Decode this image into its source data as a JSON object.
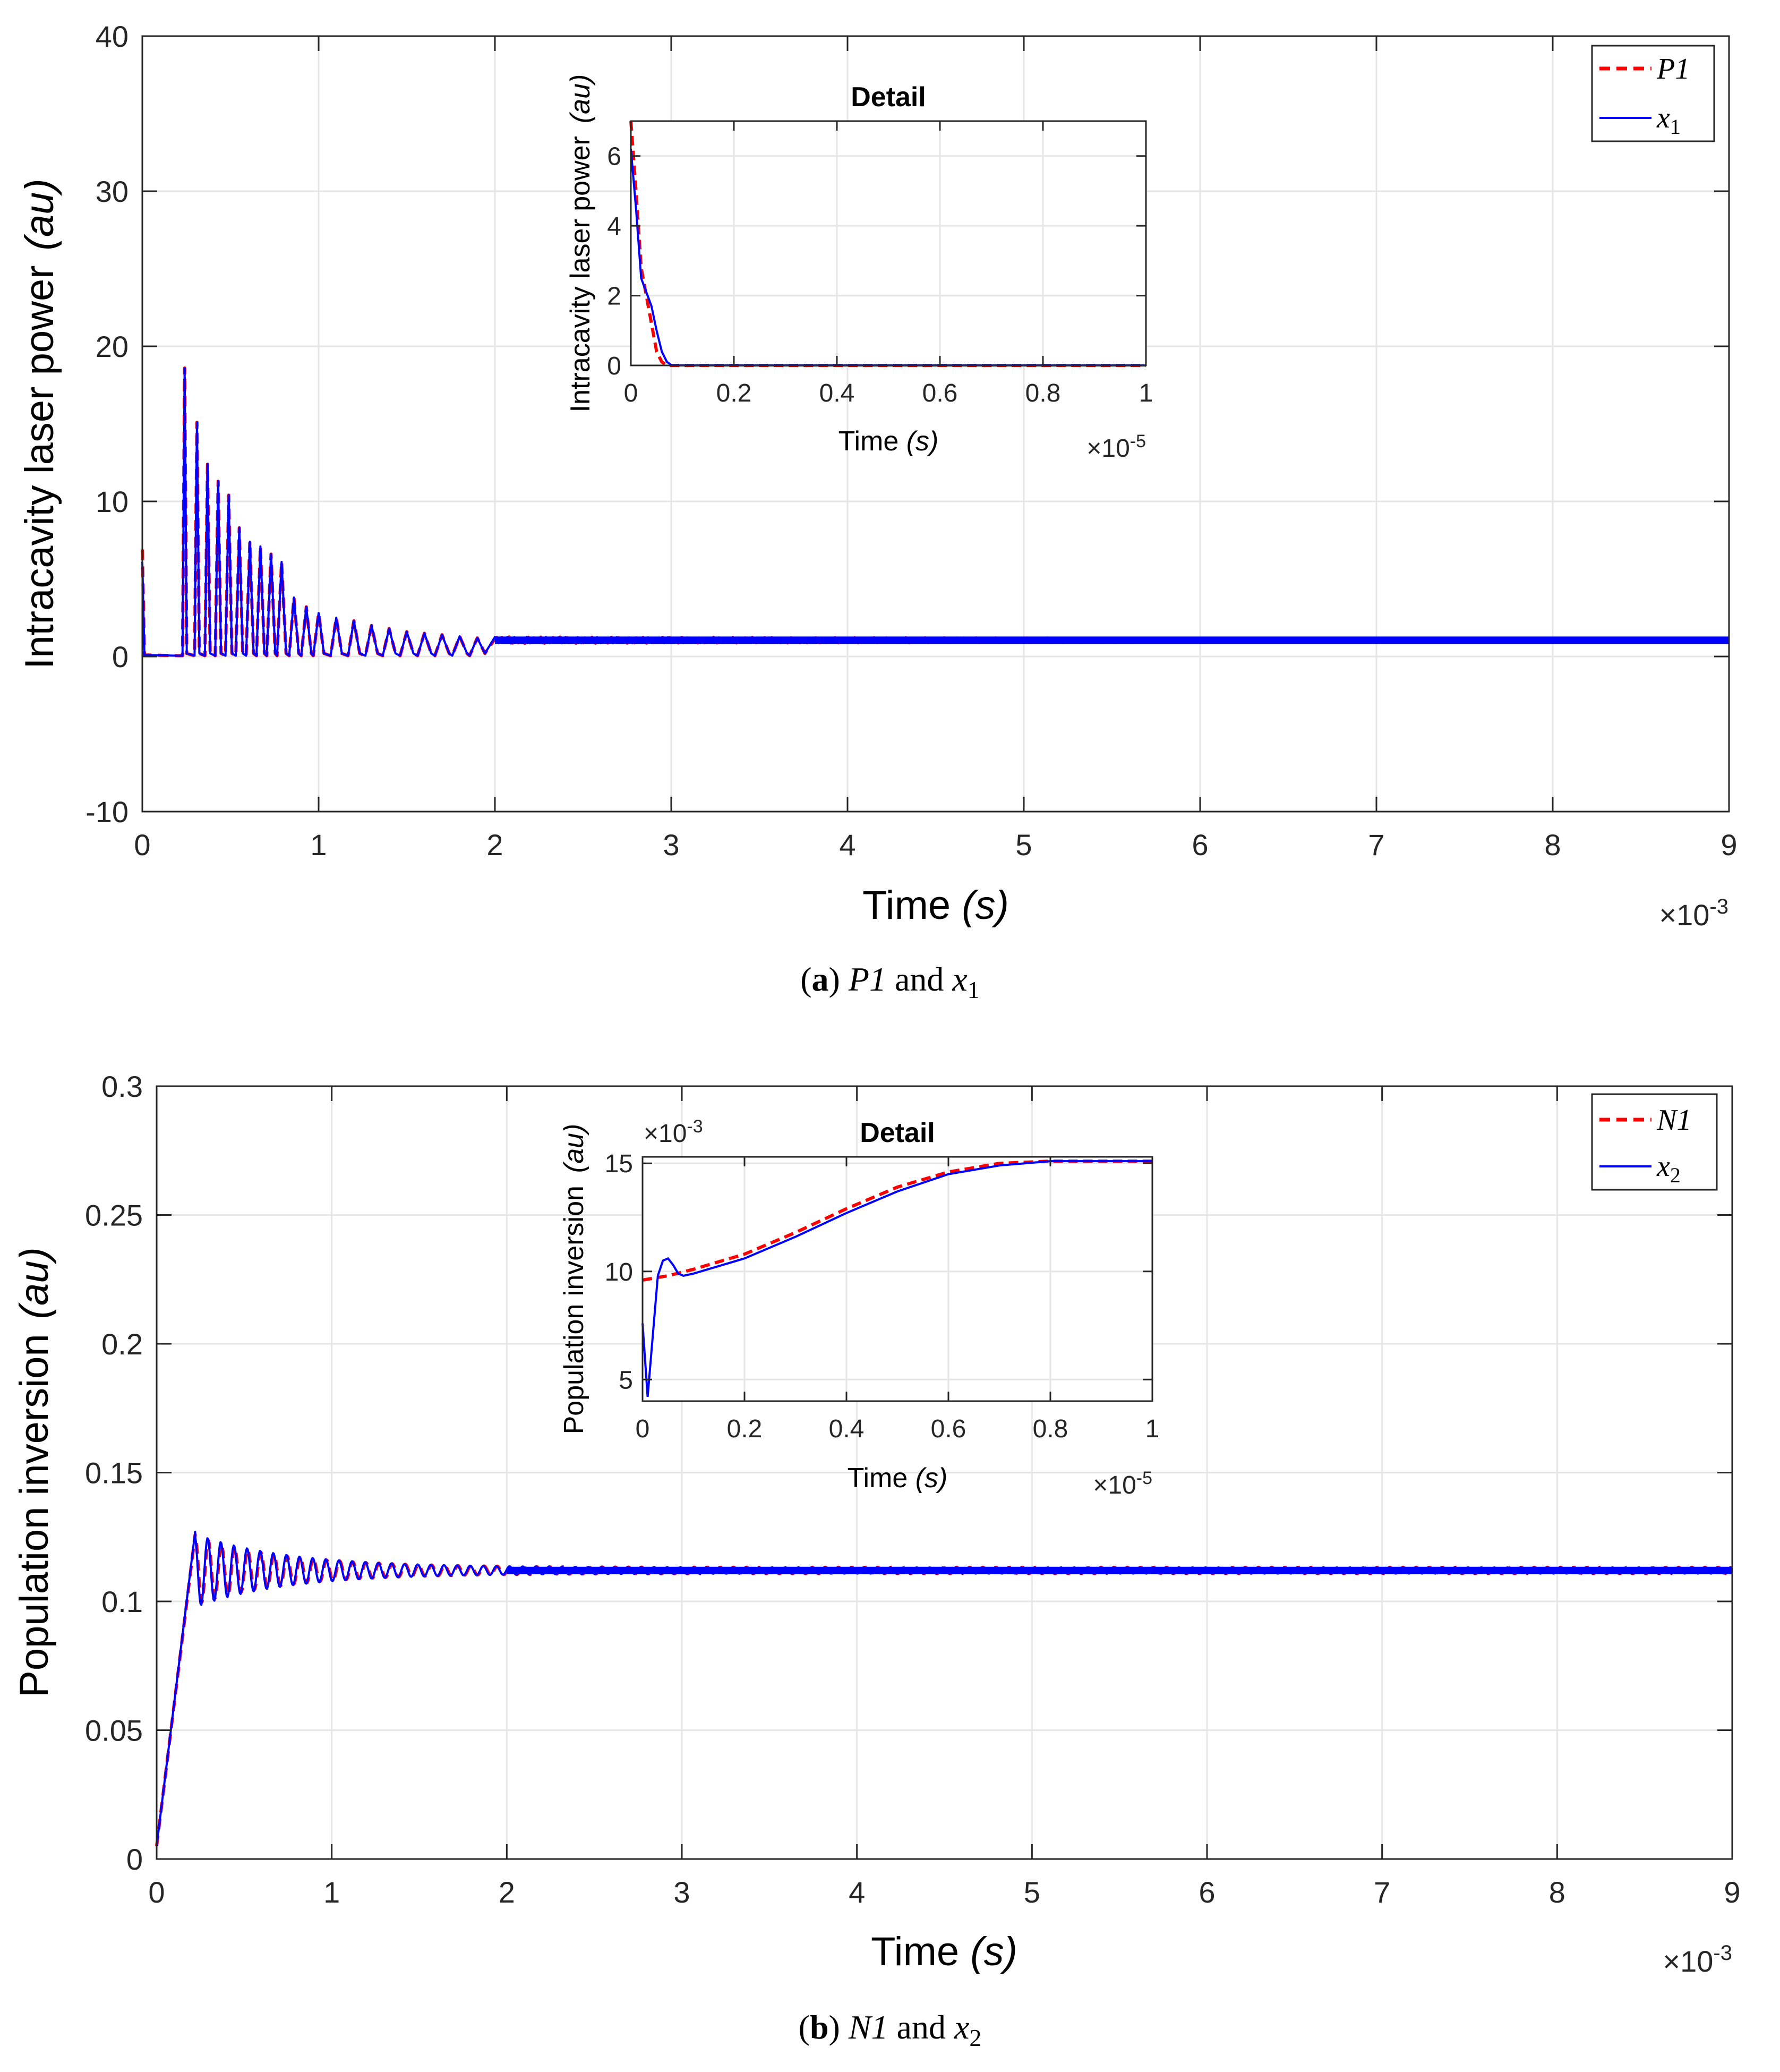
{
  "colors": {
    "reference": "#ff0000",
    "state": "#0000ff"
  },
  "chart_data": [
    {
      "id": "a",
      "type": "line",
      "caption": {
        "label": "a",
        "text1": "P1",
        "text2": "and",
        "text3": "x",
        "text3_sub": "1"
      },
      "xlabel": "Time",
      "xlabel_unit": "(s)",
      "ylabel": "Intracavity laser power",
      "ylabel_unit": "(au)",
      "xlim": [
        0,
        9
      ],
      "ylim": [
        -10,
        40
      ],
      "xticks": [
        0,
        1,
        2,
        3,
        4,
        5,
        6,
        7,
        8,
        9
      ],
      "yticks": [
        -10,
        0,
        10,
        20,
        30,
        40
      ],
      "x_exponent": "-3",
      "x_multiplier": "×10",
      "grid": true,
      "legend": {
        "position": "top-right",
        "entries": [
          "P1",
          "x1"
        ]
      },
      "series": [
        {
          "name": "P1",
          "style": "dashed",
          "initial": 6.9,
          "spikes": [
            [
              0.24,
              18.6
            ],
            [
              0.31,
              15.1
            ],
            [
              0.37,
              12.4
            ],
            [
              0.43,
              11.3
            ],
            [
              0.49,
              10.4
            ],
            [
              0.55,
              8.3
            ],
            [
              0.61,
              7.4
            ],
            [
              0.67,
              7.1
            ],
            [
              0.73,
              6.6
            ],
            [
              0.79,
              6.1
            ],
            [
              0.86,
              3.8
            ],
            [
              0.93,
              3.2
            ],
            [
              1.0,
              2.8
            ],
            [
              1.1,
              2.5
            ],
            [
              1.2,
              2.3
            ],
            [
              1.3,
              2.0
            ],
            [
              1.4,
              1.8
            ],
            [
              1.5,
              1.6
            ],
            [
              1.6,
              1.5
            ],
            [
              1.7,
              1.4
            ],
            [
              1.8,
              1.3
            ],
            [
              1.9,
              1.2
            ]
          ],
          "steady": 1.05
        },
        {
          "name": "x1",
          "style": "solid",
          "initial": 6.1,
          "spikes": [
            [
              0.24,
              18.6
            ],
            [
              0.31,
              15.1
            ],
            [
              0.37,
              12.4
            ],
            [
              0.43,
              11.3
            ],
            [
              0.49,
              10.4
            ],
            [
              0.55,
              8.3
            ],
            [
              0.61,
              7.4
            ],
            [
              0.67,
              7.1
            ],
            [
              0.73,
              6.6
            ],
            [
              0.79,
              6.1
            ],
            [
              0.86,
              3.8
            ],
            [
              0.93,
              3.2
            ],
            [
              1.0,
              2.8
            ],
            [
              1.1,
              2.5
            ],
            [
              1.2,
              2.3
            ],
            [
              1.3,
              2.0
            ],
            [
              1.4,
              1.8
            ],
            [
              1.5,
              1.6
            ],
            [
              1.6,
              1.5
            ],
            [
              1.7,
              1.4
            ],
            [
              1.8,
              1.3
            ],
            [
              1.9,
              1.2
            ]
          ],
          "steady": 1.05
        }
      ],
      "inset": {
        "title": "Detail",
        "xlabel": "Time",
        "xlabel_unit": "(s)",
        "ylabel": "Intracavity laser power",
        "ylabel_unit": "(au)",
        "xlim": [
          0,
          1
        ],
        "ylim": [
          0,
          7
        ],
        "xticks": [
          0,
          0.2,
          0.4,
          0.6,
          0.8,
          1
        ],
        "xtick_labels": [
          "0",
          "0.2",
          "0.4",
          "0.6",
          "0.8",
          "1"
        ],
        "yticks": [
          0,
          2,
          4,
          6
        ],
        "x_exponent": "-5",
        "x_multiplier": "×10",
        "y_exponent": "",
        "series": [
          {
            "name": "P1",
            "x": [
              0,
              0.01,
              0.02,
              0.03,
              0.04,
              0.05,
              0.06,
              0.07,
              0.08,
              0.1,
              1.0
            ],
            "y": [
              7.0,
              5.0,
              2.8,
              2.0,
              1.2,
              0.4,
              0.1,
              0,
              0,
              0,
              0
            ]
          },
          {
            "name": "x1",
            "x": [
              0,
              0.01,
              0.02,
              0.03,
              0.04,
              0.05,
              0.06,
              0.07,
              0.08,
              0.1,
              1.0
            ],
            "y": [
              6.2,
              4.5,
              2.5,
              2.1,
              1.7,
              1.0,
              0.4,
              0.1,
              0,
              0,
              0
            ]
          }
        ]
      }
    },
    {
      "id": "b",
      "type": "line",
      "caption": {
        "label": "b",
        "text1": "N1",
        "text2": "and",
        "text3": "x",
        "text3_sub": "2"
      },
      "xlabel": "Time",
      "xlabel_unit": "(s)",
      "ylabel": "Population inversion",
      "ylabel_unit": "(au)",
      "xlim": [
        0,
        9
      ],
      "ylim": [
        0,
        0.3
      ],
      "xticks": [
        0,
        1,
        2,
        3,
        4,
        5,
        6,
        7,
        8,
        9
      ],
      "yticks": [
        0,
        0.05,
        0.1,
        0.15,
        0.2,
        0.25,
        0.3
      ],
      "ytick_labels": [
        "0",
        "0.05",
        "0.1",
        "0.15",
        "0.2",
        "0.25",
        "0.3"
      ],
      "x_exponent": "-3",
      "x_multiplier": "×10",
      "grid": true,
      "legend": {
        "position": "top-right",
        "entries": [
          "N1",
          "x2"
        ]
      },
      "series": [
        {
          "name": "N1",
          "style": "dashed",
          "start": 0.005,
          "rise_end": [
            0.22,
            0.126
          ],
          "osc_amp": 0.012,
          "steady": 0.112
        },
        {
          "name": "x2",
          "style": "solid",
          "start": 0.005,
          "rise_end": [
            0.22,
            0.127
          ],
          "osc_amp": 0.013,
          "steady": 0.112
        }
      ],
      "inset": {
        "title": "Detail",
        "xlabel": "Time",
        "xlabel_unit": "(s)",
        "ylabel": "Population inversion",
        "ylabel_unit": "(au)",
        "xlim": [
          0,
          1
        ],
        "ylim": [
          4,
          15.3
        ],
        "xticks": [
          0,
          0.2,
          0.4,
          0.6,
          0.8,
          1
        ],
        "xtick_labels": [
          "0",
          "0.2",
          "0.4",
          "0.6",
          "0.8",
          "1"
        ],
        "yticks": [
          5,
          10,
          15
        ],
        "x_exponent": "-5",
        "x_multiplier": "×10",
        "y_exponent": "-3",
        "y_multiplier": "×10",
        "series": [
          {
            "name": "N1",
            "x": [
              0,
              0.05,
              0.1,
              0.2,
              0.3,
              0.4,
              0.5,
              0.6,
              0.7,
              0.8,
              0.9,
              1.0
            ],
            "y": [
              9.6,
              9.8,
              10.1,
              10.8,
              11.8,
              12.9,
              13.9,
              14.6,
              15.0,
              15.1,
              15.1,
              15.1
            ]
          },
          {
            "name": "x2",
            "x": [
              0,
              0.01,
              0.02,
              0.03,
              0.04,
              0.05,
              0.06,
              0.07,
              0.08,
              0.1,
              0.2,
              0.3,
              0.4,
              0.5,
              0.6,
              0.7,
              0.8,
              0.9,
              1.0
            ],
            "y": [
              7.6,
              4.2,
              7.0,
              9.8,
              10.5,
              10.6,
              10.3,
              9.9,
              9.8,
              9.9,
              10.6,
              11.6,
              12.7,
              13.7,
              14.5,
              14.9,
              15.1,
              15.1,
              15.1
            ]
          }
        ]
      }
    }
  ]
}
